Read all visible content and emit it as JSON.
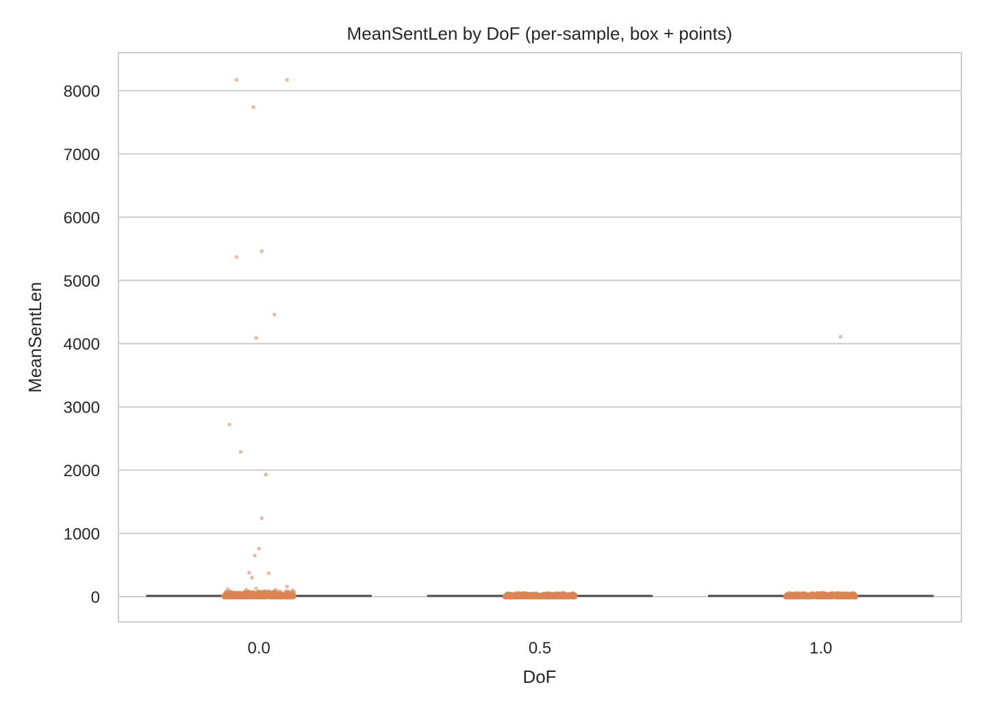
{
  "chart_data": {
    "type": "box+strip",
    "title": "MeanSentLen by DoF (per-sample, box + points)",
    "xlabel": "DoF",
    "ylabel": "MeanSentLen",
    "categories": [
      "0.0",
      "0.5",
      "1.0"
    ],
    "ylim": [
      -400,
      8600
    ],
    "yticks": [
      0,
      1000,
      2000,
      3000,
      4000,
      5000,
      6000,
      7000,
      8000
    ],
    "grid": true,
    "legend": "none",
    "colors": {
      "points": "#dd8452",
      "box_line": "#4c4c4c",
      "grid": "#cccccc",
      "frame": "#cccccc"
    },
    "boxes": [
      {
        "category": "0.0",
        "q1": 8,
        "median": 12,
        "q3": 18
      },
      {
        "category": "0.5",
        "q1": 10,
        "median": 13,
        "q3": 17
      },
      {
        "category": "1.0",
        "q1": 9,
        "median": 12,
        "q3": 16
      }
    ],
    "outliers": [
      {
        "category": "0.0",
        "jitter": -0.08,
        "value": 8170
      },
      {
        "category": "0.0",
        "jitter": 0.1,
        "value": 8170
      },
      {
        "category": "0.0",
        "jitter": -0.02,
        "value": 7740
      },
      {
        "category": "0.0",
        "jitter": 0.01,
        "value": 5460
      },
      {
        "category": "0.0",
        "jitter": -0.08,
        "value": 5370
      },
      {
        "category": "0.0",
        "jitter": 0.055,
        "value": 4460
      },
      {
        "category": "0.0",
        "jitter": -0.01,
        "value": 4090
      },
      {
        "category": "0.0",
        "jitter": -0.105,
        "value": 2720
      },
      {
        "category": "0.0",
        "jitter": -0.065,
        "value": 2290
      },
      {
        "category": "0.0",
        "jitter": 0.025,
        "value": 1930
      },
      {
        "category": "0.0",
        "jitter": 0.01,
        "value": 1240
      },
      {
        "category": "0.0",
        "jitter": 0.0,
        "value": 760
      },
      {
        "category": "0.0",
        "jitter": -0.015,
        "value": 650
      },
      {
        "category": "0.0",
        "jitter": -0.035,
        "value": 380
      },
      {
        "category": "0.0",
        "jitter": 0.035,
        "value": 370
      },
      {
        "category": "0.0",
        "jitter": -0.025,
        "value": 300
      },
      {
        "category": "0.0",
        "jitter": 0.1,
        "value": 160
      },
      {
        "category": "0.0",
        "jitter": -0.11,
        "value": 120
      },
      {
        "category": "0.0",
        "jitter": -0.01,
        "value": 130
      },
      {
        "category": "0.0",
        "jitter": 0.06,
        "value": 110
      },
      {
        "category": "0.0",
        "jitter": 0.12,
        "value": 100
      },
      {
        "category": "0.0",
        "jitter": -0.045,
        "value": 110
      },
      {
        "category": "0.0",
        "jitter": 0.02,
        "value": 90
      },
      {
        "category": "1.0",
        "jitter": 0.07,
        "value": 4110
      }
    ],
    "cluster": [
      {
        "category": "0.0",
        "jitter_range": [
          -0.125,
          0.125
        ],
        "value_range": [
          0,
          70
        ]
      },
      {
        "category": "0.5",
        "jitter_range": [
          -0.125,
          0.125
        ],
        "value_range": [
          0,
          45
        ]
      },
      {
        "category": "1.0",
        "jitter_range": [
          -0.125,
          0.125
        ],
        "value_range": [
          0,
          45
        ]
      }
    ]
  }
}
